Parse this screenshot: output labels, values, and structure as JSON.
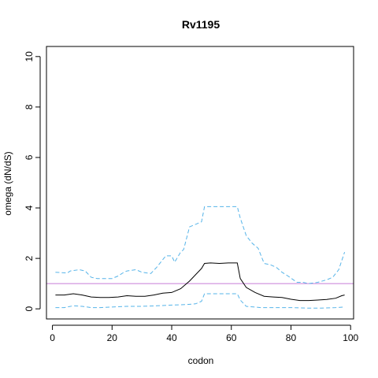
{
  "chart_data": {
    "type": "line",
    "title": "Rv1195",
    "xlabel": "codon",
    "ylabel": "omega (dN/dS)",
    "xlim": [
      -2,
      101
    ],
    "ylim": [
      -0.4,
      10.4
    ],
    "x_ticks": [
      0,
      20,
      40,
      60,
      80,
      100
    ],
    "y_ticks": [
      0,
      2,
      4,
      6,
      8,
      10
    ],
    "reference_line": {
      "y": 1,
      "color": "#c77cd6"
    },
    "series": [
      {
        "style": "solid",
        "color": "#000000",
        "x": [
          1,
          4,
          7,
          10,
          13,
          16,
          19,
          22,
          25,
          28,
          31,
          34,
          37,
          40,
          43,
          46,
          48,
          50,
          51,
          53,
          56,
          59,
          62,
          63,
          65,
          68,
          71,
          74,
          77,
          80,
          83,
          86,
          89,
          92,
          95,
          97,
          98
        ],
        "y": [
          0.55,
          0.55,
          0.6,
          0.55,
          0.47,
          0.45,
          0.45,
          0.47,
          0.52,
          0.5,
          0.5,
          0.55,
          0.62,
          0.65,
          0.8,
          1.1,
          1.35,
          1.6,
          1.8,
          1.82,
          1.8,
          1.82,
          1.82,
          1.2,
          0.85,
          0.65,
          0.5,
          0.47,
          0.45,
          0.38,
          0.33,
          0.33,
          0.35,
          0.37,
          0.42,
          0.52,
          0.55
        ]
      },
      {
        "style": "dashed",
        "color": "#56b4e9",
        "x": [
          1,
          5,
          6,
          9,
          11,
          13,
          15,
          20,
          22,
          24,
          25,
          28,
          30,
          33,
          35,
          37,
          38,
          40,
          41,
          43,
          44,
          46,
          48,
          50,
          51,
          57,
          62,
          63,
          65,
          67,
          69,
          71,
          73,
          75,
          77,
          79,
          82,
          84,
          86,
          89,
          92,
          94,
          96,
          98
        ],
        "y": [
          1.45,
          1.42,
          1.5,
          1.55,
          1.5,
          1.25,
          1.2,
          1.2,
          1.3,
          1.45,
          1.5,
          1.55,
          1.45,
          1.4,
          1.65,
          1.95,
          2.1,
          2.1,
          1.85,
          2.25,
          2.35,
          3.25,
          3.35,
          3.45,
          4.05,
          4.05,
          4.05,
          3.6,
          2.9,
          2.6,
          2.4,
          1.8,
          1.75,
          1.65,
          1.45,
          1.3,
          1.05,
          1.05,
          1.0,
          1.05,
          1.15,
          1.25,
          1.55,
          2.25
        ]
      },
      {
        "style": "dashed",
        "color": "#56b4e9",
        "x": [
          1,
          4,
          7,
          10,
          13,
          16,
          20,
          25,
          30,
          35,
          40,
          45,
          48,
          50,
          51,
          56,
          62,
          63,
          65,
          70,
          75,
          80,
          85,
          90,
          95,
          98
        ],
        "y": [
          0.05,
          0.05,
          0.12,
          0.1,
          0.05,
          0.05,
          0.07,
          0.1,
          0.1,
          0.12,
          0.15,
          0.17,
          0.2,
          0.3,
          0.6,
          0.6,
          0.6,
          0.35,
          0.1,
          0.05,
          0.05,
          0.05,
          0.03,
          0.03,
          0.05,
          0.07
        ]
      }
    ]
  }
}
